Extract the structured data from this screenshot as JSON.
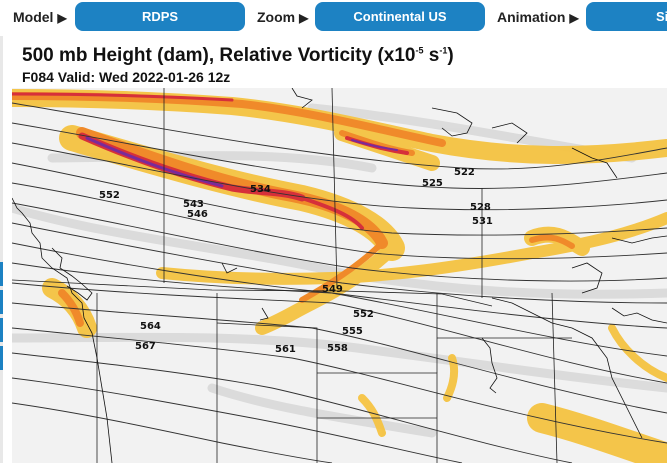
{
  "toolbar": {
    "model_label": "Model",
    "model_value": "RDPS",
    "zoom_label": "Zoom",
    "zoom_value": "Continental US",
    "animation_label": "Animation",
    "animation_value": "Si"
  },
  "chart": {
    "title_main": "500 mb Height (dam), Relative Vorticity (x10",
    "title_exp1": "-5",
    "title_mid": " s",
    "title_exp2": "-1",
    "title_end": ")",
    "subtitle": "F084 Valid: Wed 2022-01-26 12z"
  },
  "contour_labels": [
    {
      "text": "552"
    },
    {
      "text": "543"
    },
    {
      "text": "546"
    },
    {
      "text": "534"
    },
    {
      "text": "522"
    },
    {
      "text": "525"
    },
    {
      "text": "528"
    },
    {
      "text": "531"
    },
    {
      "text": "549"
    },
    {
      "text": "552"
    },
    {
      "text": "555"
    },
    {
      "text": "558"
    },
    {
      "text": "561"
    },
    {
      "text": "564"
    },
    {
      "text": "567"
    }
  ],
  "colors": {
    "button_blue": "#1d82c3",
    "vort_yellow": "#f5c342",
    "vort_orange": "#f08a2a",
    "vort_red": "#d6303a",
    "vort_purple": "#7a2a9a"
  }
}
